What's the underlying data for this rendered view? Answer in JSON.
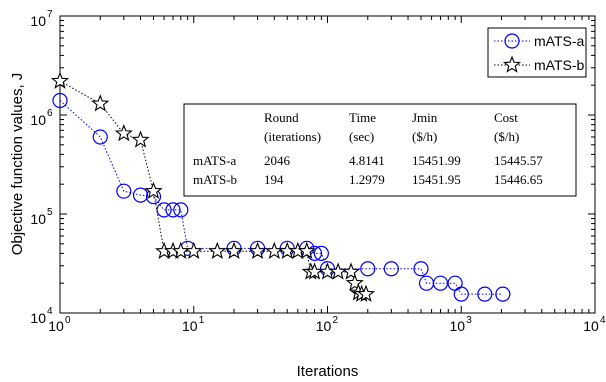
{
  "chart_data": {
    "type": "scatter",
    "title": "",
    "xlabel": "Iterations",
    "ylabel": "Objective function values, J",
    "x_scale": "log",
    "y_scale": "log",
    "xlim": [
      1,
      10000
    ],
    "ylim": [
      10000,
      10000000
    ],
    "x_ticks": [
      {
        "base": "10",
        "exp": "0"
      },
      {
        "base": "10",
        "exp": "1"
      },
      {
        "base": "10",
        "exp": "2"
      },
      {
        "base": "10",
        "exp": "3"
      },
      {
        "base": "10",
        "exp": "4"
      }
    ],
    "y_ticks": [
      {
        "base": "10",
        "exp": "4"
      },
      {
        "base": "10",
        "exp": "5"
      },
      {
        "base": "10",
        "exp": "6"
      },
      {
        "base": "10",
        "exp": "7"
      }
    ],
    "grid": false,
    "legend_position": "top-right",
    "series": [
      {
        "name": "mATS-a",
        "color": "#0000ff",
        "marker": "circle",
        "line_style": "dotted",
        "x": [
          1,
          2,
          3,
          4,
          5,
          6,
          7,
          8,
          9,
          20,
          30,
          50,
          70,
          80,
          90,
          100,
          200,
          300,
          500,
          550,
          700,
          900,
          1000,
          1500,
          2046
        ],
        "y": [
          1400000,
          600000,
          170000,
          155000,
          150000,
          110000,
          110000,
          110000,
          45000,
          45000,
          45000,
          45000,
          45000,
          40000,
          40000,
          28000,
          28000,
          28000,
          28000,
          20000,
          20000,
          20000,
          15500,
          15500,
          15500
        ]
      },
      {
        "name": "mATS-b",
        "color": "#000000",
        "marker": "star",
        "line_style": "dotted",
        "x": [
          1,
          2,
          3,
          4,
          5,
          6,
          7,
          8,
          10,
          15,
          20,
          30,
          40,
          50,
          60,
          70,
          75,
          80,
          100,
          120,
          150,
          160,
          170,
          180,
          194
        ],
        "y": [
          2200000,
          1300000,
          650000,
          560000,
          170000,
          42000,
          42000,
          42000,
          42000,
          42000,
          42000,
          42000,
          42000,
          42000,
          42000,
          42000,
          26000,
          26000,
          26000,
          26000,
          26000,
          20000,
          16000,
          15500,
          15500
        ]
      }
    ],
    "table": {
      "headers": [
        [
          "",
          "Round",
          "Time",
          "Jmin",
          "Cost"
        ],
        [
          "",
          "(iterations)",
          "(sec)",
          "($/h)",
          "($/h)"
        ]
      ],
      "rows": [
        [
          "mATS-a",
          "2046",
          "4.8141",
          "15451.99",
          "15445.57"
        ],
        [
          "mATS-b",
          "194",
          "1.2979",
          "15451.95",
          "15446.65"
        ]
      ]
    }
  }
}
